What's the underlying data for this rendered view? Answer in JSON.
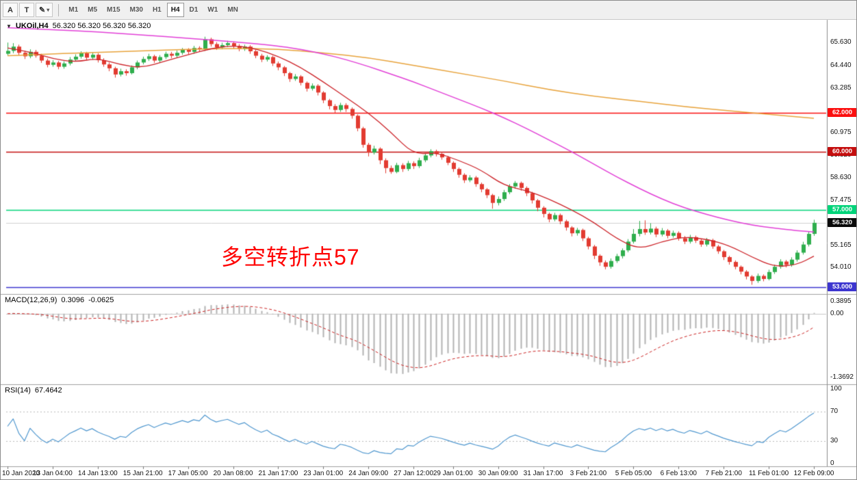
{
  "toolbar": {
    "tools": [
      {
        "name": "arrow",
        "label": "A"
      },
      {
        "name": "text",
        "label": "T"
      },
      {
        "name": "draw",
        "icon": "✎",
        "dropdown_icon": "▾"
      }
    ],
    "timeframes": [
      "M1",
      "M5",
      "M15",
      "M30",
      "H1",
      "H4",
      "D1",
      "W1",
      "MN"
    ],
    "active_timeframe": "H4"
  },
  "chart": {
    "title_icon": "▼",
    "title": "UKOil,H4",
    "ohlc_display": "56.320 56.320 56.320 56.320",
    "annotation": "多空转折点57",
    "annotation_color": "#ff0000",
    "price_axis_labels": [
      {
        "label": "65.630",
        "price": 65.63
      },
      {
        "label": "64.440",
        "price": 64.44
      },
      {
        "label": "63.285",
        "price": 63.285
      },
      {
        "label": "60.975",
        "price": 60.975
      },
      {
        "label": "59.820",
        "price": 59.82
      },
      {
        "label": "58.630",
        "price": 58.63
      },
      {
        "label": "57.475",
        "price": 57.475
      },
      {
        "label": "55.165",
        "price": 55.165
      },
      {
        "label": "54.010",
        "price": 54.01
      }
    ],
    "current_price": {
      "label": "56.320",
      "value": 56.32,
      "badge_color": "#0a0a0a"
    }
  },
  "macd": {
    "label": "MACD(12,26,9)",
    "value_main": "0.3096",
    "value_signal": "-0.0625",
    "axis": [
      "0.3895",
      "0.00",
      "-1.3692"
    ]
  },
  "rsi": {
    "label": "RSI(14)",
    "value": "67.4642",
    "axis": [
      {
        "label": "100",
        "value": 100
      },
      {
        "label": "70",
        "value": 70
      },
      {
        "label": "30",
        "value": 30
      },
      {
        "label": "0",
        "value": 0
      }
    ],
    "levels": [
      70,
      30
    ]
  },
  "chart_data": {
    "type": "candlestick",
    "symbol": "UKOil",
    "timeframe": "H4",
    "ylim": [
      52.75,
      66.45
    ],
    "last_price": 56.32,
    "colors": {
      "up": "#2fae4d",
      "down": "#e23b31",
      "macd_hist": "#b3b3b3",
      "macd_signal": "#cc2020",
      "rsi_line": "#4f97cf",
      "current_line": "#cfcfcf"
    },
    "x_tick_labels": [
      "10 Jan 2020",
      "13 Jan 04:00",
      "14 Jan 13:00",
      "15 Jan 21:00",
      "17 Jan 05:00",
      "20 Jan 08:00",
      "21 Jan 17:00",
      "23 Jan 01:00",
      "24 Jan 09:00",
      "27 Jan 12:00",
      "29 Jan 01:00",
      "30 Jan 09:00",
      "31 Jan 17:00",
      "3 Feb 21:00",
      "5 Feb 05:00",
      "6 Feb 13:00",
      "7 Feb 21:00",
      "11 Feb 01:00",
      "12 Feb 09:00"
    ],
    "hlines": [
      {
        "price": 62.0,
        "label": "62.000",
        "color": "#fb0f0f"
      },
      {
        "price": 60.0,
        "label": "60.000",
        "color": "#c40e0e"
      },
      {
        "price": 57.0,
        "label": "57.000",
        "color": "#00d47a"
      },
      {
        "price": 53.0,
        "label": "53.000",
        "color": "#3c35cf"
      }
    ],
    "overlays": [
      {
        "name": "ma-slow",
        "color": "#e8a33b",
        "width": 1.5,
        "points": [
          [
            0,
            64.95
          ],
          [
            8,
            65.05
          ],
          [
            16,
            65.12
          ],
          [
            24,
            65.2
          ],
          [
            32,
            65.28
          ],
          [
            40,
            65.33
          ],
          [
            48,
            65.3
          ],
          [
            56,
            65.1
          ],
          [
            64,
            64.85
          ],
          [
            72,
            64.45
          ],
          [
            80,
            64.05
          ],
          [
            88,
            63.65
          ],
          [
            96,
            63.2
          ],
          [
            104,
            62.85
          ],
          [
            112,
            62.6
          ],
          [
            120,
            62.32
          ],
          [
            128,
            62.1
          ],
          [
            136,
            61.9
          ],
          [
            143,
            61.72
          ]
        ]
      },
      {
        "name": "ma-mid",
        "color": "#e23fd7",
        "width": 1.5,
        "points": [
          [
            0,
            66.4
          ],
          [
            8,
            66.3
          ],
          [
            16,
            66.18
          ],
          [
            24,
            66.02
          ],
          [
            32,
            65.85
          ],
          [
            40,
            65.68
          ],
          [
            48,
            65.45
          ],
          [
            52,
            65.28
          ],
          [
            56,
            65.05
          ],
          [
            60,
            64.75
          ],
          [
            64,
            64.4
          ],
          [
            68,
            64.0
          ],
          [
            72,
            63.6
          ],
          [
            76,
            63.15
          ],
          [
            80,
            62.7
          ],
          [
            84,
            62.25
          ],
          [
            88,
            61.75
          ],
          [
            92,
            61.2
          ],
          [
            96,
            60.6
          ],
          [
            100,
            60.0
          ],
          [
            104,
            59.35
          ],
          [
            108,
            58.7
          ],
          [
            112,
            58.1
          ],
          [
            116,
            57.55
          ],
          [
            120,
            57.1
          ],
          [
            124,
            56.75
          ],
          [
            128,
            56.45
          ],
          [
            132,
            56.2
          ],
          [
            136,
            56.05
          ],
          [
            140,
            55.92
          ],
          [
            143,
            55.85
          ]
        ]
      },
      {
        "name": "ma-fast",
        "color": "#cc2026",
        "width": 1.3,
        "points": [
          [
            0,
            65.35
          ],
          [
            4,
            65.15
          ],
          [
            8,
            64.8
          ],
          [
            12,
            64.62
          ],
          [
            16,
            64.82
          ],
          [
            20,
            64.48
          ],
          [
            24,
            64.32
          ],
          [
            28,
            64.68
          ],
          [
            32,
            65.0
          ],
          [
            36,
            65.32
          ],
          [
            40,
            65.48
          ],
          [
            44,
            65.32
          ],
          [
            48,
            64.92
          ],
          [
            52,
            64.35
          ],
          [
            56,
            63.6
          ],
          [
            60,
            62.8
          ],
          [
            64,
            62.0
          ],
          [
            68,
            61.0
          ],
          [
            72,
            59.85
          ],
          [
            76,
            59.95
          ],
          [
            80,
            59.55
          ],
          [
            84,
            59.05
          ],
          [
            88,
            58.25
          ],
          [
            92,
            58.0
          ],
          [
            96,
            57.55
          ],
          [
            100,
            57.0
          ],
          [
            104,
            56.35
          ],
          [
            108,
            55.5
          ],
          [
            112,
            54.95
          ],
          [
            116,
            55.35
          ],
          [
            120,
            55.6
          ],
          [
            124,
            55.48
          ],
          [
            128,
            55.15
          ],
          [
            132,
            54.55
          ],
          [
            136,
            54.05
          ],
          [
            140,
            54.15
          ],
          [
            143,
            54.6
          ]
        ]
      }
    ],
    "indicators": [
      {
        "name": "MACD",
        "params": [
          12,
          26,
          9
        ]
      },
      {
        "name": "RSI",
        "params": [
          14
        ]
      }
    ],
    "candles": [
      [
        65.05,
        65.63,
        64.95,
        65.2
      ],
      [
        65.2,
        65.6,
        65.08,
        65.42
      ],
      [
        65.42,
        65.52,
        64.98,
        65.1
      ],
      [
        65.1,
        65.2,
        64.78,
        64.92
      ],
      [
        64.92,
        65.28,
        64.82,
        65.15
      ],
      [
        65.15,
        65.25,
        64.85,
        64.95
      ],
      [
        64.95,
        65.05,
        64.58,
        64.7
      ],
      [
        64.7,
        64.8,
        64.35,
        64.48
      ],
      [
        64.48,
        64.72,
        64.38,
        64.6
      ],
      [
        64.6,
        64.68,
        64.25,
        64.38
      ],
      [
        64.38,
        64.66,
        64.28,
        64.55
      ],
      [
        64.55,
        64.88,
        64.45,
        64.75
      ],
      [
        64.75,
        65.02,
        64.65,
        64.9
      ],
      [
        64.9,
        65.18,
        64.8,
        65.08
      ],
      [
        65.08,
        65.15,
        64.72,
        64.85
      ],
      [
        64.85,
        65.12,
        64.75,
        65.0
      ],
      [
        65.0,
        65.08,
        64.6,
        64.72
      ],
      [
        64.72,
        64.82,
        64.38,
        64.5
      ],
      [
        64.5,
        64.6,
        64.15,
        64.3
      ],
      [
        64.3,
        64.38,
        63.82,
        63.98
      ],
      [
        63.98,
        64.28,
        63.88,
        64.15
      ],
      [
        64.15,
        64.25,
        63.92,
        64.05
      ],
      [
        64.05,
        64.45,
        63.98,
        64.35
      ],
      [
        64.35,
        64.7,
        64.25,
        64.6
      ],
      [
        64.6,
        64.9,
        64.5,
        64.78
      ],
      [
        64.78,
        65.05,
        64.68,
        64.92
      ],
      [
        64.92,
        65.0,
        64.58,
        64.7
      ],
      [
        64.7,
        64.98,
        64.6,
        64.88
      ],
      [
        64.88,
        65.16,
        64.78,
        65.05
      ],
      [
        65.05,
        65.15,
        64.82,
        64.95
      ],
      [
        64.95,
        65.22,
        64.85,
        65.1
      ],
      [
        65.1,
        65.35,
        65.0,
        65.25
      ],
      [
        65.25,
        65.34,
        65.02,
        65.15
      ],
      [
        65.15,
        65.46,
        65.05,
        65.35
      ],
      [
        65.35,
        65.44,
        65.15,
        65.28
      ],
      [
        65.28,
        65.93,
        65.2,
        65.8
      ],
      [
        65.8,
        65.88,
        65.42,
        65.55
      ],
      [
        65.55,
        65.65,
        65.25,
        65.38
      ],
      [
        65.38,
        65.62,
        65.28,
        65.5
      ],
      [
        65.5,
        65.72,
        65.4,
        65.6
      ],
      [
        65.6,
        65.68,
        65.32,
        65.45
      ],
      [
        65.45,
        65.55,
        65.18,
        65.3
      ],
      [
        65.3,
        65.52,
        65.2,
        65.42
      ],
      [
        65.42,
        65.5,
        65.05,
        65.18
      ],
      [
        65.18,
        65.26,
        64.82,
        64.95
      ],
      [
        64.95,
        65.05,
        64.62,
        64.75
      ],
      [
        64.75,
        64.98,
        64.65,
        64.88
      ],
      [
        64.88,
        64.95,
        64.42,
        64.55
      ],
      [
        64.55,
        64.65,
        64.2,
        64.35
      ],
      [
        64.35,
        64.42,
        63.9,
        64.05
      ],
      [
        64.05,
        64.12,
        63.6,
        63.75
      ],
      [
        63.75,
        64.0,
        63.65,
        63.88
      ],
      [
        63.88,
        63.95,
        63.42,
        63.55
      ],
      [
        63.55,
        63.62,
        63.1,
        63.25
      ],
      [
        63.25,
        63.52,
        63.15,
        63.4
      ],
      [
        63.4,
        63.48,
        62.9,
        63.05
      ],
      [
        63.05,
        63.12,
        62.5,
        62.65
      ],
      [
        62.65,
        62.72,
        62.18,
        62.35
      ],
      [
        62.35,
        62.45,
        62.0,
        62.15
      ],
      [
        62.15,
        62.52,
        62.05,
        62.4
      ],
      [
        62.4,
        62.5,
        62.05,
        62.2
      ],
      [
        62.2,
        62.28,
        61.7,
        61.85
      ],
      [
        61.85,
        61.92,
        61.05,
        61.2
      ],
      [
        61.2,
        61.28,
        60.2,
        60.35
      ],
      [
        60.35,
        60.45,
        59.75,
        59.95
      ],
      [
        59.95,
        60.3,
        59.85,
        60.15
      ],
      [
        60.15,
        60.22,
        59.35,
        59.55
      ],
      [
        59.55,
        59.65,
        58.88,
        59.15
      ],
      [
        59.15,
        59.28,
        58.85,
        58.95
      ],
      [
        58.95,
        59.42,
        58.88,
        59.3
      ],
      [
        59.3,
        59.4,
        58.95,
        59.1
      ],
      [
        59.1,
        59.52,
        59.0,
        59.4
      ],
      [
        59.4,
        59.5,
        59.1,
        59.25
      ],
      [
        59.25,
        59.68,
        59.15,
        59.55
      ],
      [
        59.55,
        59.92,
        59.45,
        59.8
      ],
      [
        59.8,
        60.12,
        59.7,
        60.02
      ],
      [
        60.02,
        60.1,
        59.75,
        59.88
      ],
      [
        59.88,
        59.98,
        59.58,
        59.7
      ],
      [
        59.7,
        59.78,
        59.3,
        59.42
      ],
      [
        59.42,
        59.5,
        58.95,
        59.1
      ],
      [
        59.1,
        59.18,
        58.65,
        58.8
      ],
      [
        58.8,
        58.88,
        58.38,
        58.52
      ],
      [
        58.52,
        58.78,
        58.42,
        58.66
      ],
      [
        58.66,
        58.74,
        58.18,
        58.32
      ],
      [
        58.32,
        58.4,
        57.9,
        58.05
      ],
      [
        58.05,
        58.12,
        57.6,
        57.75
      ],
      [
        57.75,
        57.82,
        57.05,
        57.35
      ],
      [
        57.35,
        57.68,
        57.22,
        57.55
      ],
      [
        57.55,
        58.02,
        57.45,
        57.9
      ],
      [
        57.9,
        58.32,
        57.8,
        58.2
      ],
      [
        58.2,
        58.48,
        58.08,
        58.38
      ],
      [
        58.38,
        58.45,
        57.98,
        58.12
      ],
      [
        58.12,
        58.2,
        57.7,
        57.85
      ],
      [
        57.85,
        57.92,
        57.32,
        57.48
      ],
      [
        57.48,
        57.55,
        56.92,
        57.1
      ],
      [
        57.1,
        57.18,
        56.6,
        56.78
      ],
      [
        56.78,
        56.85,
        56.35,
        56.5
      ],
      [
        56.5,
        56.84,
        56.4,
        56.72
      ],
      [
        56.72,
        56.8,
        56.25,
        56.4
      ],
      [
        56.4,
        56.48,
        55.92,
        56.08
      ],
      [
        56.08,
        56.15,
        55.62,
        55.78
      ],
      [
        55.78,
        56.06,
        55.66,
        55.95
      ],
      [
        55.95,
        56.02,
        55.38,
        55.52
      ],
      [
        55.52,
        55.6,
        54.95,
        55.1
      ],
      [
        55.1,
        55.18,
        54.45,
        54.62
      ],
      [
        54.62,
        54.7,
        54.1,
        54.28
      ],
      [
        54.28,
        54.38,
        53.92,
        54.05
      ],
      [
        54.05,
        54.48,
        53.95,
        54.35
      ],
      [
        54.35,
        54.72,
        54.25,
        54.6
      ],
      [
        54.6,
        55.0,
        54.48,
        54.9
      ],
      [
        54.9,
        55.48,
        54.8,
        55.35
      ],
      [
        55.35,
        56.0,
        55.25,
        55.75
      ],
      [
        55.75,
        56.42,
        55.62,
        56.0
      ],
      [
        56.0,
        56.45,
        55.7,
        55.82
      ],
      [
        55.82,
        56.3,
        55.72,
        56.02
      ],
      [
        56.02,
        56.12,
        55.58,
        55.72
      ],
      [
        55.72,
        56.05,
        55.62,
        55.92
      ],
      [
        55.92,
        56.0,
        55.52,
        55.65
      ],
      [
        55.65,
        55.92,
        55.55,
        55.8
      ],
      [
        55.8,
        55.88,
        55.4,
        55.52
      ],
      [
        55.52,
        55.64,
        55.22,
        55.35
      ],
      [
        55.35,
        55.7,
        55.25,
        55.58
      ],
      [
        55.58,
        55.66,
        55.28,
        55.4
      ],
      [
        55.4,
        55.48,
        55.08,
        55.2
      ],
      [
        55.2,
        55.54,
        55.1,
        55.42
      ],
      [
        55.42,
        55.5,
        54.98,
        55.1
      ],
      [
        55.1,
        55.18,
        54.72,
        54.85
      ],
      [
        54.85,
        54.92,
        54.4,
        54.55
      ],
      [
        54.55,
        54.62,
        54.16,
        54.3
      ],
      [
        54.3,
        54.38,
        53.92,
        54.05
      ],
      [
        54.05,
        54.12,
        53.66,
        53.8
      ],
      [
        53.8,
        53.88,
        53.4,
        53.55
      ],
      [
        53.55,
        53.62,
        53.12,
        53.32
      ],
      [
        53.32,
        53.7,
        53.22,
        53.58
      ],
      [
        53.58,
        53.66,
        53.3,
        53.42
      ],
      [
        53.42,
        53.9,
        53.35,
        53.78
      ],
      [
        53.78,
        54.16,
        53.68,
        54.05
      ],
      [
        54.05,
        54.44,
        53.95,
        54.32
      ],
      [
        54.32,
        54.4,
        54.02,
        54.15
      ],
      [
        54.15,
        54.54,
        54.05,
        54.42
      ],
      [
        54.42,
        54.9,
        54.32,
        54.78
      ],
      [
        54.78,
        55.34,
        54.68,
        55.2
      ],
      [
        55.2,
        55.88,
        55.1,
        55.75
      ],
      [
        55.75,
        56.48,
        55.65,
        56.32
      ]
    ]
  }
}
